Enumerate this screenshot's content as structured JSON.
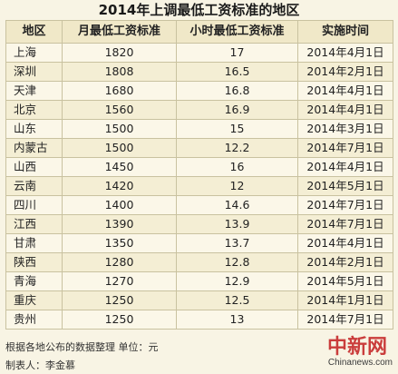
{
  "title": "2014年上调最低工资标准的地区",
  "headers": [
    "地区",
    "月最低工资标准",
    "小时最低工资标准",
    "实施时间"
  ],
  "rows": [
    [
      "上海",
      "1820",
      "17",
      "2014年4月1日"
    ],
    [
      "深圳",
      "1808",
      "16.5",
      "2014年2月1日"
    ],
    [
      "天津",
      "1680",
      "16.8",
      "2014年4月1日"
    ],
    [
      "北京",
      "1560",
      "16.9",
      "2014年4月1日"
    ],
    [
      "山东",
      "1500",
      "15",
      "2014年3月1日"
    ],
    [
      "内蒙古",
      "1500",
      "12.2",
      "2014年7月1日"
    ],
    [
      "山西",
      "1450",
      "16",
      "2014年4月1日"
    ],
    [
      "云南",
      "1420",
      "12",
      "2014年5月1日"
    ],
    [
      "四川",
      "1400",
      "14.6",
      "2014年7月1日"
    ],
    [
      "江西",
      "1390",
      "13.9",
      "2014年7月1日"
    ],
    [
      "甘肃",
      "1350",
      "13.7",
      "2014年4月1日"
    ],
    [
      "陕西",
      "1280",
      "12.8",
      "2014年2月1日"
    ],
    [
      "青海",
      "1270",
      "12.9",
      "2014年5月1日"
    ],
    [
      "重庆",
      "1250",
      "12.5",
      "2014年1月1日"
    ],
    [
      "贵州",
      "1250",
      "13",
      "2014年7月1日"
    ]
  ],
  "note1": "根据各地公布的数据整理 单位：元",
  "note2": "制表人：李金慕",
  "watermark": "中新网",
  "watermark_url": "Chinanews.com"
}
